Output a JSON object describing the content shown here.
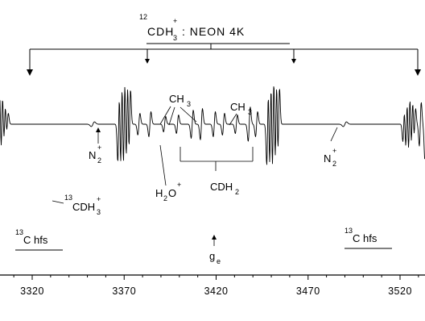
{
  "chart_data": {
    "type": "line",
    "title_mass": "12",
    "title_species_main": "CDH",
    "title_species_sub": "3",
    "title_species_sup": "+",
    "title_rest": ": NEON   4K",
    "x_ticks": [
      3320,
      3370,
      3420,
      3470,
      3520
    ],
    "x_range": [
      3277,
      3545
    ],
    "marker": {
      "label": "g",
      "sub": "e",
      "x": 3420
    },
    "hf_quartet_positions": [
      3302,
      3370,
      3452,
      3526
    ],
    "spectrum_regions": [
      {
        "name": "13C satellite low field",
        "from": 3278,
        "to": 3311
      },
      {
        "name": "central region",
        "from": 3364,
        "to": 3458
      },
      {
        "name": "13C satellite high field",
        "from": 3505,
        "to": 3545
      }
    ],
    "annotations": {
      "ch3_1": {
        "main": "CH",
        "sub": "3"
      },
      "ch3_2": {
        "main": "CH",
        "sub": "3"
      },
      "cdh2": {
        "main": "CDH",
        "sub": "2"
      },
      "h2o": {
        "main": "H",
        "sub": "2",
        "main2": "O",
        "sup": "+"
      },
      "n2_left": {
        "main": "N",
        "sub": "2",
        "sup": "+"
      },
      "n2_right": {
        "main": "N",
        "sub": "2",
        "sup": "+"
      },
      "c13cdh3": {
        "mass": "13",
        "main": "CDH",
        "sub": "3",
        "sup": "+"
      },
      "c13_hfs_left": {
        "mass": "13",
        "main": "C hfs"
      },
      "c13_hfs_right": {
        "mass": "13",
        "main": "C hfs"
      }
    }
  }
}
